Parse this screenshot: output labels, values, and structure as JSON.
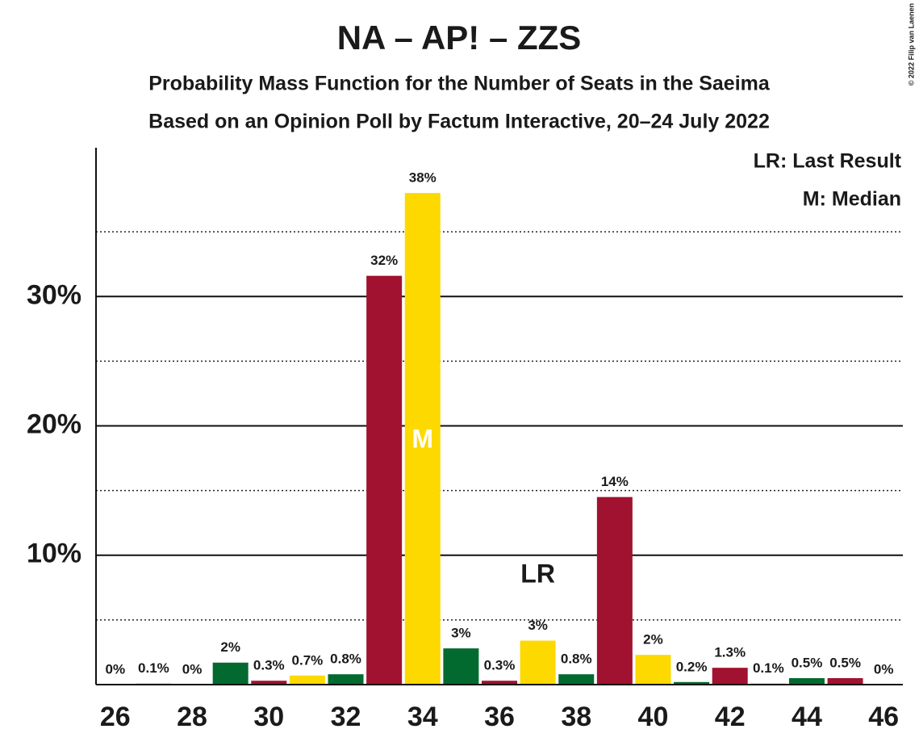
{
  "chart_data": {
    "type": "bar",
    "title": "NA – AP! – ZZS",
    "subtitle": "Probability Mass Function for the Number of Seats in the Saeima",
    "subtitle2": "Based on an Opinion Poll by Factum Interactive, 20–24 July 2022",
    "copyright": "© 2022 Filip van Laenen",
    "legend": [
      "LR: Last Result",
      "M: Median"
    ],
    "annotations": [
      "LR",
      "M"
    ],
    "categories": [
      "26",
      null,
      "28",
      null,
      "30",
      null,
      "32",
      null,
      "34",
      null,
      "36",
      null,
      "38",
      null,
      "40",
      null,
      "42",
      null,
      "44",
      null,
      "46"
    ],
    "values": [
      0,
      0.1,
      0,
      1.7,
      0.3,
      0.7,
      0.8,
      31.6,
      38,
      2.8,
      0.3,
      3.4,
      0.8,
      14.5,
      2.3,
      0.2,
      1.3,
      0.1,
      0.5,
      0.5,
      0
    ],
    "value_labels": [
      "0%",
      "0.1%",
      "0%",
      "2%",
      "0.3%",
      "0.7%",
      "0.8%",
      "32%",
      "38%",
      "3%",
      "0.3%",
      "3%",
      "0.8%",
      "14%",
      "2%",
      "0.2%",
      "1.3%",
      "0.1%",
      "0.5%",
      "0.5%",
      "0%"
    ],
    "colors": [
      "#a0122f",
      "#fdd900",
      "#036a2f",
      "#036a2f",
      "#a0122f",
      "#fdd900",
      "#036a2f",
      "#a0122f",
      "#fdd900",
      "#036a2f",
      "#a0122f",
      "#fdd900",
      "#036a2f",
      "#a0122f",
      "#fdd900",
      "#036a2f",
      "#a0122f",
      "#fdd900",
      "#036a2f",
      "#a0122f",
      "#fdd900"
    ],
    "ylim": [
      0,
      41.5
    ],
    "yticks": [
      {
        "value": 10,
        "label": "10%"
      },
      {
        "value": 20,
        "label": "20%"
      },
      {
        "value": 30,
        "label": "30%"
      }
    ],
    "minor_yticks": [
      5,
      15,
      25,
      35
    ],
    "grid": true
  }
}
